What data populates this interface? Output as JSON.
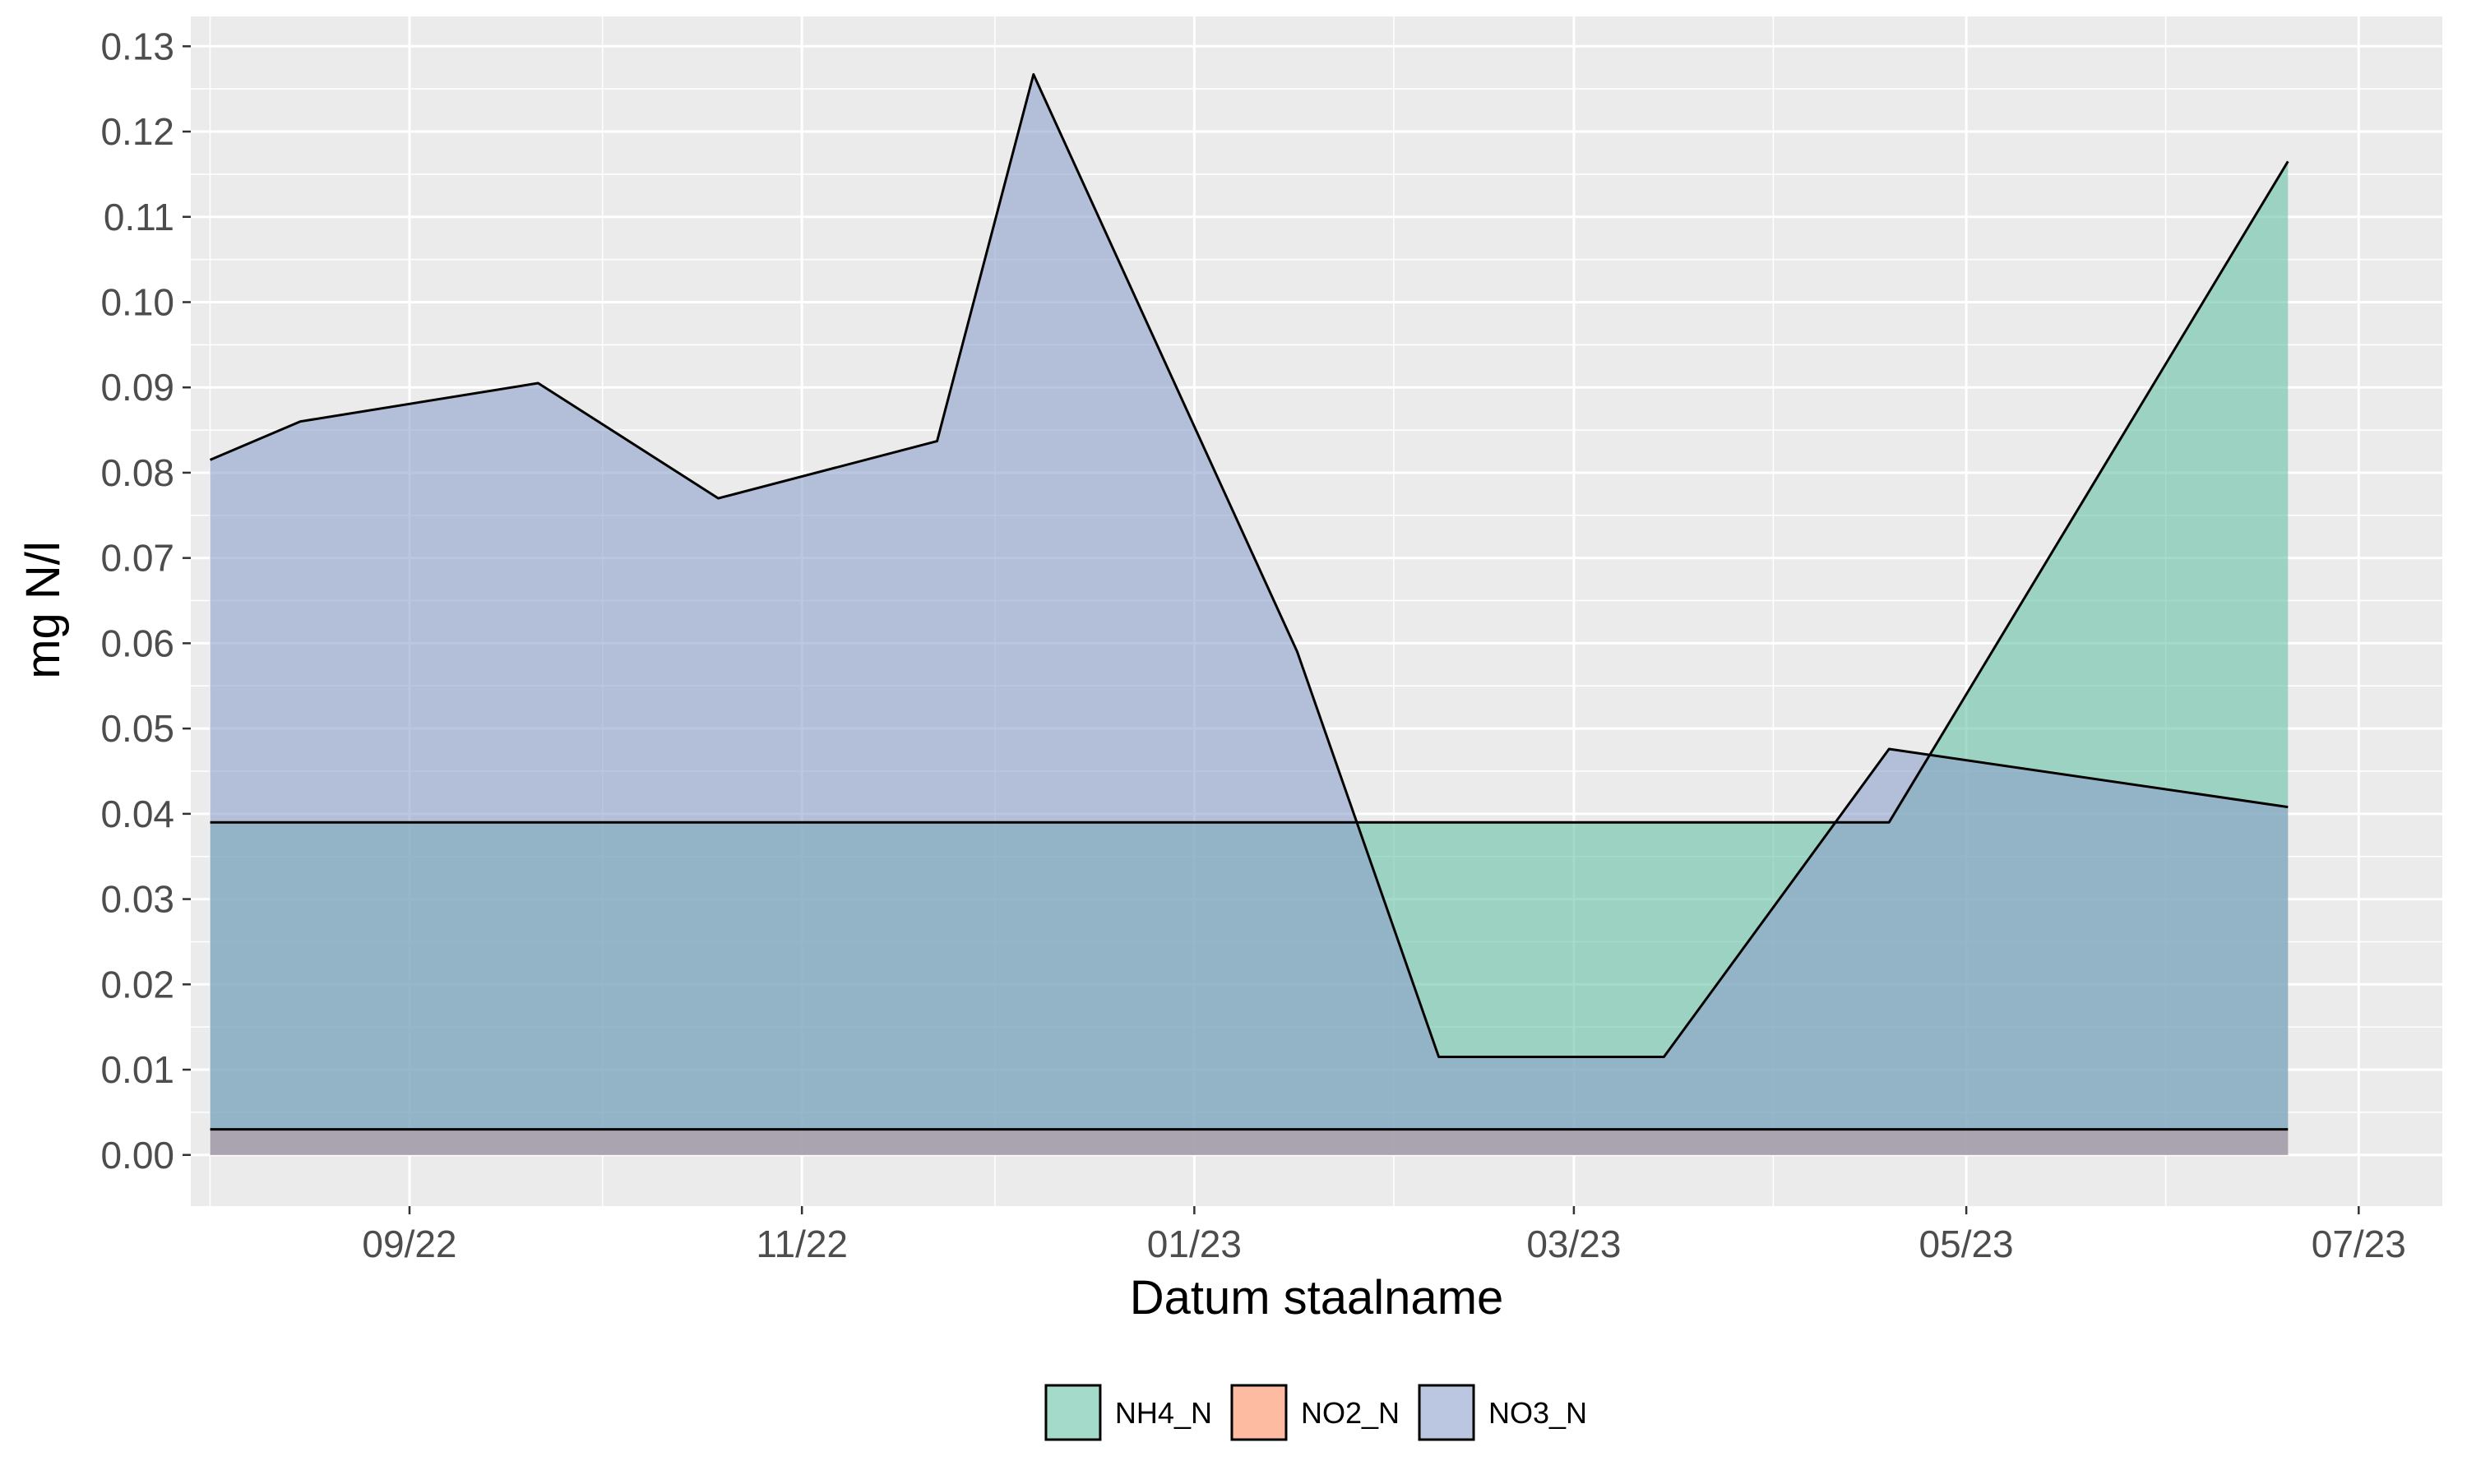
{
  "chart_data": {
    "type": "area",
    "xlabel": "Datum staalname",
    "ylabel": "mg N/l",
    "x_range": [
      "2022-07-29",
      "2023-07-14"
    ],
    "ylim": [
      -0.006,
      0.1335
    ],
    "y_ticks": [
      0.0,
      0.01,
      0.02,
      0.03,
      0.04,
      0.05,
      0.06,
      0.07,
      0.08,
      0.09,
      0.1,
      0.11,
      0.12,
      0.13
    ],
    "y_tick_labels": [
      "0.00",
      "0.01",
      "0.02",
      "0.03",
      "0.04",
      "0.05",
      "0.06",
      "0.07",
      "0.08",
      "0.09",
      "0.10",
      "0.11",
      "0.12",
      "0.13"
    ],
    "x_ticks": [
      "2022-09-01",
      "2022-11-01",
      "2023-01-01",
      "2023-03-01",
      "2023-05-01",
      "2023-07-01"
    ],
    "x_tick_labels": [
      "09/22",
      "11/22",
      "01/23",
      "03/23",
      "05/23",
      "07/23"
    ],
    "grid": true,
    "legend_position": "bottom",
    "series": [
      {
        "name": "NH4_N",
        "color": "#66c2a5",
        "points": [
          {
            "x": "2022-08-01",
            "y": 0.039
          },
          {
            "x": "2022-08-15",
            "y": 0.039
          },
          {
            "x": "2022-09-21",
            "y": 0.039
          },
          {
            "x": "2022-10-19",
            "y": 0.039
          },
          {
            "x": "2022-11-22",
            "y": 0.039
          },
          {
            "x": "2022-12-07",
            "y": 0.039
          },
          {
            "x": "2023-01-17",
            "y": 0.039
          },
          {
            "x": "2023-02-08",
            "y": 0.039
          },
          {
            "x": "2023-03-15",
            "y": 0.039
          },
          {
            "x": "2023-04-19",
            "y": 0.039
          },
          {
            "x": "2023-06-20",
            "y": 0.1165
          }
        ]
      },
      {
        "name": "NO2_N",
        "color": "#fc8d62",
        "points": [
          {
            "x": "2022-08-01",
            "y": 0.003
          },
          {
            "x": "2022-08-15",
            "y": 0.003
          },
          {
            "x": "2022-09-21",
            "y": 0.003
          },
          {
            "x": "2022-10-19",
            "y": 0.003
          },
          {
            "x": "2022-11-22",
            "y": 0.003
          },
          {
            "x": "2022-12-07",
            "y": 0.003
          },
          {
            "x": "2023-01-17",
            "y": 0.003
          },
          {
            "x": "2023-02-08",
            "y": 0.003
          },
          {
            "x": "2023-03-15",
            "y": 0.003
          },
          {
            "x": "2023-04-19",
            "y": 0.003
          },
          {
            "x": "2023-06-20",
            "y": 0.003
          }
        ]
      },
      {
        "name": "NO3_N",
        "color": "#8da0cb",
        "points": [
          {
            "x": "2022-08-01",
            "y": 0.0815
          },
          {
            "x": "2022-08-15",
            "y": 0.086
          },
          {
            "x": "2022-09-21",
            "y": 0.0905
          },
          {
            "x": "2022-10-19",
            "y": 0.077
          },
          {
            "x": "2022-11-22",
            "y": 0.0837
          },
          {
            "x": "2022-12-07",
            "y": 0.1267
          },
          {
            "x": "2023-01-17",
            "y": 0.059
          },
          {
            "x": "2023-02-08",
            "y": 0.0115
          },
          {
            "x": "2023-03-15",
            "y": 0.0115
          },
          {
            "x": "2023-04-19",
            "y": 0.0476
          },
          {
            "x": "2023-06-20",
            "y": 0.0408
          }
        ]
      }
    ]
  }
}
